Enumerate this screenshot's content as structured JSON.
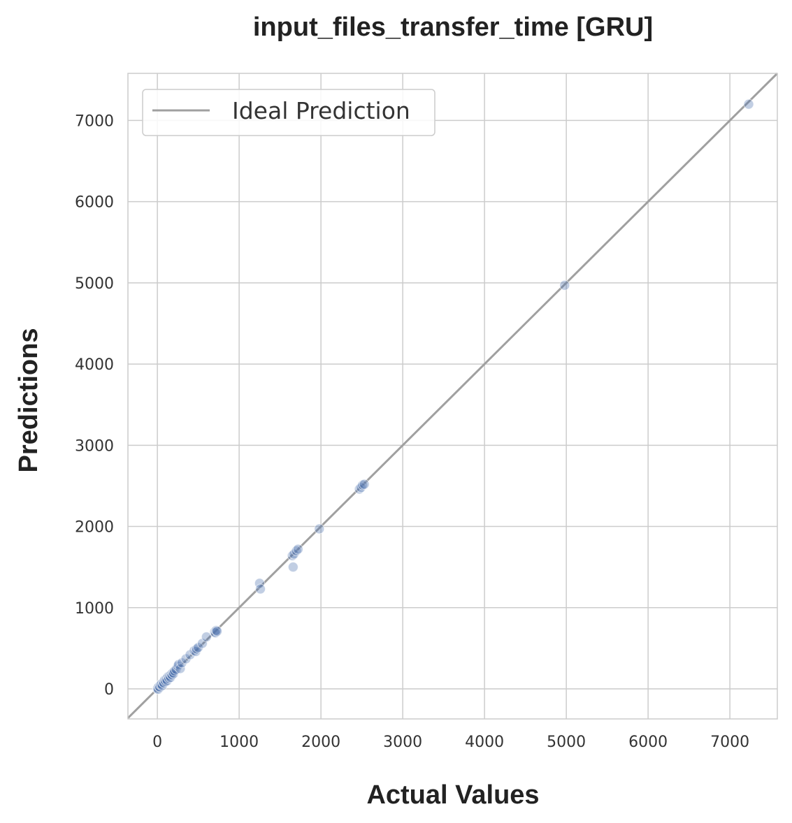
{
  "chart_data": {
    "type": "scatter",
    "title": "input_files_transfer_time [GRU]",
    "xlabel": "Actual Values",
    "ylabel": "Predictions",
    "xlim": [
      -360,
      7580
    ],
    "ylim": [
      -370,
      7580
    ],
    "xticks": [
      0,
      1000,
      2000,
      3000,
      4000,
      5000,
      6000,
      7000
    ],
    "yticks": [
      0,
      1000,
      2000,
      3000,
      4000,
      5000,
      6000,
      7000
    ],
    "grid": true,
    "legend": {
      "position": "top-left",
      "entries": [
        {
          "label": "Ideal Prediction",
          "marker": "line"
        }
      ]
    },
    "ideal_line": {
      "label": "Ideal Prediction",
      "color": "#a0a0a0",
      "from": [
        -360,
        -360
      ],
      "to": [
        7580,
        7580
      ]
    },
    "series": [
      {
        "color": "#4c72b0",
        "points": [
          [
            0,
            0
          ],
          [
            5,
            10
          ],
          [
            10,
            -5
          ],
          [
            20,
            30
          ],
          [
            30,
            20
          ],
          [
            40,
            50
          ],
          [
            50,
            60
          ],
          [
            60,
            40
          ],
          [
            70,
            80
          ],
          [
            80,
            70
          ],
          [
            90,
            110
          ],
          [
            100,
            90
          ],
          [
            110,
            120
          ],
          [
            120,
            100
          ],
          [
            130,
            150
          ],
          [
            140,
            130
          ],
          [
            150,
            160
          ],
          [
            160,
            140
          ],
          [
            170,
            180
          ],
          [
            180,
            170
          ],
          [
            190,
            200
          ],
          [
            200,
            190
          ],
          [
            210,
            220
          ],
          [
            230,
            240
          ],
          [
            250,
            280
          ],
          [
            260,
            300
          ],
          [
            280,
            250
          ],
          [
            300,
            320
          ],
          [
            350,
            370
          ],
          [
            400,
            420
          ],
          [
            450,
            470
          ],
          [
            470,
            460
          ],
          [
            480,
            490
          ],
          [
            500,
            510
          ],
          [
            550,
            560
          ],
          [
            600,
            640
          ],
          [
            700,
            700
          ],
          [
            710,
            690
          ],
          [
            720,
            720
          ],
          [
            730,
            710
          ],
          [
            1250,
            1300
          ],
          [
            1260,
            1230
          ],
          [
            1650,
            1640
          ],
          [
            1660,
            1500
          ],
          [
            1670,
            1660
          ],
          [
            1700,
            1700
          ],
          [
            1720,
            1720
          ],
          [
            1980,
            1970
          ],
          [
            2470,
            2460
          ],
          [
            2490,
            2480
          ],
          [
            2510,
            2510
          ],
          [
            2530,
            2520
          ],
          [
            4980,
            4970
          ],
          [
            7230,
            7200
          ]
        ]
      }
    ]
  }
}
